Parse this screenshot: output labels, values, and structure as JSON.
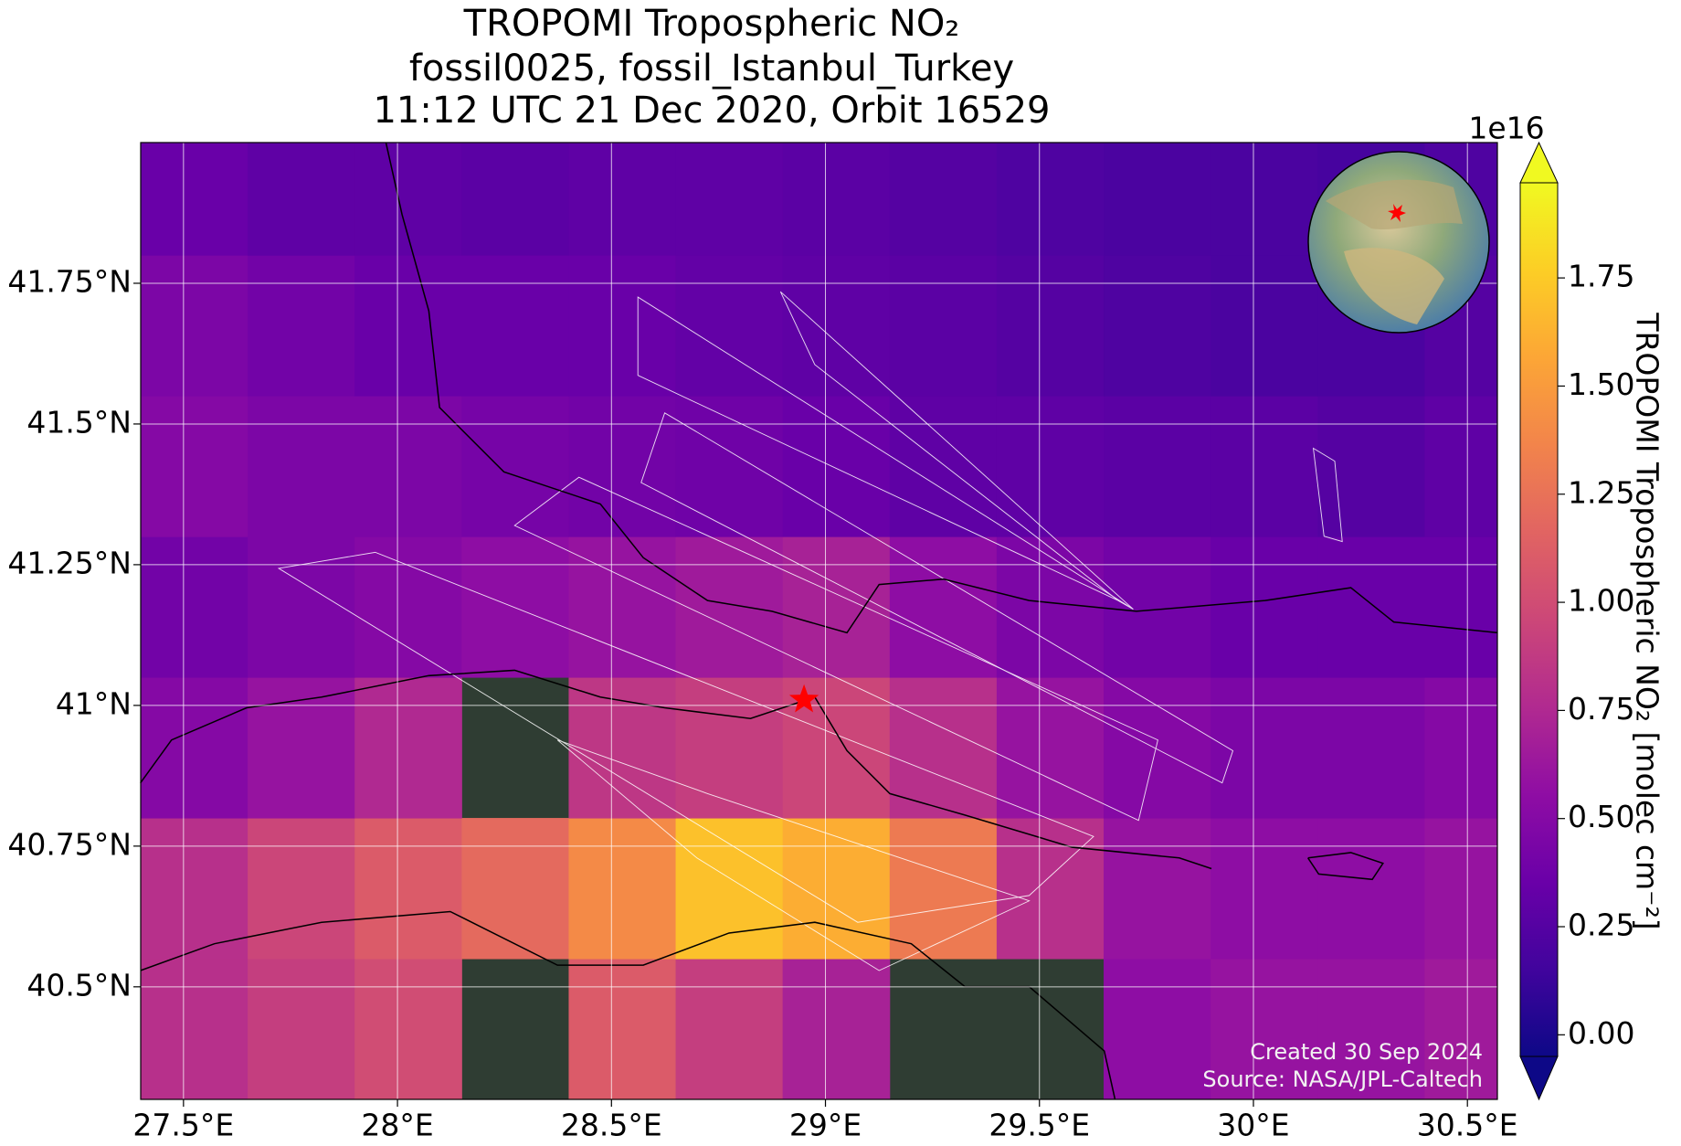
{
  "chart_data": {
    "type": "heatmap",
    "title_lines": [
      "TROPOMI Tropospheric NO₂",
      "fossil0025, fossil_Istanbul_Turkey",
      "11:12 UTC 21 Dec 2020, Orbit 16529"
    ],
    "xlim": [
      27.4,
      30.57
    ],
    "ylim": [
      40.3,
      42.0
    ],
    "xticks": [
      {
        "value": 27.5,
        "label": "27.5°E"
      },
      {
        "value": 28,
        "label": "28°E"
      },
      {
        "value": 28.5,
        "label": "28.5°E"
      },
      {
        "value": 29,
        "label": "29°E"
      },
      {
        "value": 29.5,
        "label": "29.5°E"
      },
      {
        "value": 30,
        "label": "30°E"
      },
      {
        "value": 30.5,
        "label": "30.5°E"
      }
    ],
    "yticks": [
      {
        "value": 40.5,
        "label": "40.5°N"
      },
      {
        "value": 40.75,
        "label": "40.75°N"
      },
      {
        "value": 41,
        "label": "41°N"
      },
      {
        "value": 41.25,
        "label": "41.25°N"
      },
      {
        "value": 41.5,
        "label": "41.5°N"
      },
      {
        "value": 41.75,
        "label": "41.75°N"
      }
    ],
    "grid": true,
    "colormap": "plasma",
    "lon_edges": [
      27.4,
      27.65,
      27.9,
      28.15,
      28.4,
      28.65,
      28.9,
      29.15,
      29.4,
      29.65,
      29.9,
      30.15,
      30.4,
      30.65
    ],
    "lat_edges": [
      40.3,
      40.55,
      40.8,
      41.05,
      41.3,
      41.55,
      41.8,
      42.05
    ],
    "values": [
      [
        0.8,
        0.9,
        1.0,
        null,
        1.1,
        0.9,
        0.7,
        null,
        null,
        0.55,
        0.6,
        0.6,
        0.65
      ],
      [
        0.8,
        0.95,
        1.1,
        1.2,
        1.4,
        1.7,
        1.6,
        1.3,
        0.8,
        0.6,
        0.55,
        0.55,
        0.6
      ],
      [
        0.5,
        0.6,
        0.75,
        null,
        0.85,
        0.9,
        0.95,
        0.8,
        0.6,
        0.5,
        0.45,
        0.45,
        0.5
      ],
      [
        0.4,
        0.45,
        0.5,
        0.55,
        0.6,
        0.65,
        0.7,
        0.55,
        0.45,
        0.4,
        0.35,
        0.35,
        0.35
      ],
      [
        0.5,
        0.45,
        0.45,
        0.42,
        0.4,
        0.38,
        0.35,
        0.3,
        0.3,
        0.28,
        0.28,
        0.25,
        0.3
      ],
      [
        0.45,
        0.4,
        0.35,
        0.35,
        0.35,
        0.32,
        0.3,
        0.28,
        0.25,
        0.22,
        0.2,
        0.2,
        0.25
      ],
      [
        0.35,
        0.3,
        0.3,
        0.28,
        0.3,
        0.3,
        0.28,
        0.25,
        0.22,
        0.2,
        0.2,
        0.18,
        0.22
      ]
    ],
    "marker": {
      "lon": 28.95,
      "lat": 41.01
    },
    "colorbar": {
      "label": "TROPOMI Tropospheric NO₂ [molec cm⁻²]",
      "exponent": "1e16",
      "lim": [
        -0.05,
        1.97
      ],
      "ticks": [
        {
          "value": 0,
          "label": "0.00"
        },
        {
          "value": 0.25,
          "label": "0.25"
        },
        {
          "value": 0.5,
          "label": "0.50"
        },
        {
          "value": 0.75,
          "label": "0.75"
        },
        {
          "value": 1,
          "label": "1.00"
        },
        {
          "value": 1.25,
          "label": "1.25"
        },
        {
          "value": 1.5,
          "label": "1.50"
        },
        {
          "value": 1.75,
          "label": "1.75"
        }
      ]
    },
    "created": "Created 30 Sep 2024",
    "source": "Source: NASA/JPL-Caltech"
  }
}
